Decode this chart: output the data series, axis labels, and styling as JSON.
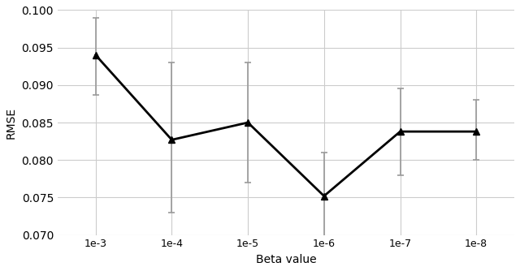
{
  "x_labels": [
    "1e-3",
    "1e-4",
    "1e-5",
    "1e-6",
    "1e-7",
    "1e-8"
  ],
  "y_values": [
    0.094,
    0.0827,
    0.085,
    0.0752,
    0.0838,
    0.0838
  ],
  "y_upper": [
    0.099,
    0.093,
    0.093,
    0.081,
    0.0895,
    0.088
  ],
  "y_lower": [
    0.0887,
    0.073,
    0.077,
    0.069,
    0.078,
    0.08
  ],
  "xlabel": "Beta value",
  "ylabel": "RMSE",
  "ylim": [
    0.07,
    0.1
  ],
  "background_color": "#ffffff",
  "line_color": "#000000",
  "errorbar_color": "#999999",
  "marker": "^",
  "marker_size": 6,
  "linewidth": 2.0,
  "elinewidth": 1.2,
  "capsize": 3,
  "capthick": 1.2,
  "grid_color": "#cccccc",
  "yticks": [
    0.07,
    0.075,
    0.08,
    0.085,
    0.09,
    0.095,
    0.1
  ]
}
